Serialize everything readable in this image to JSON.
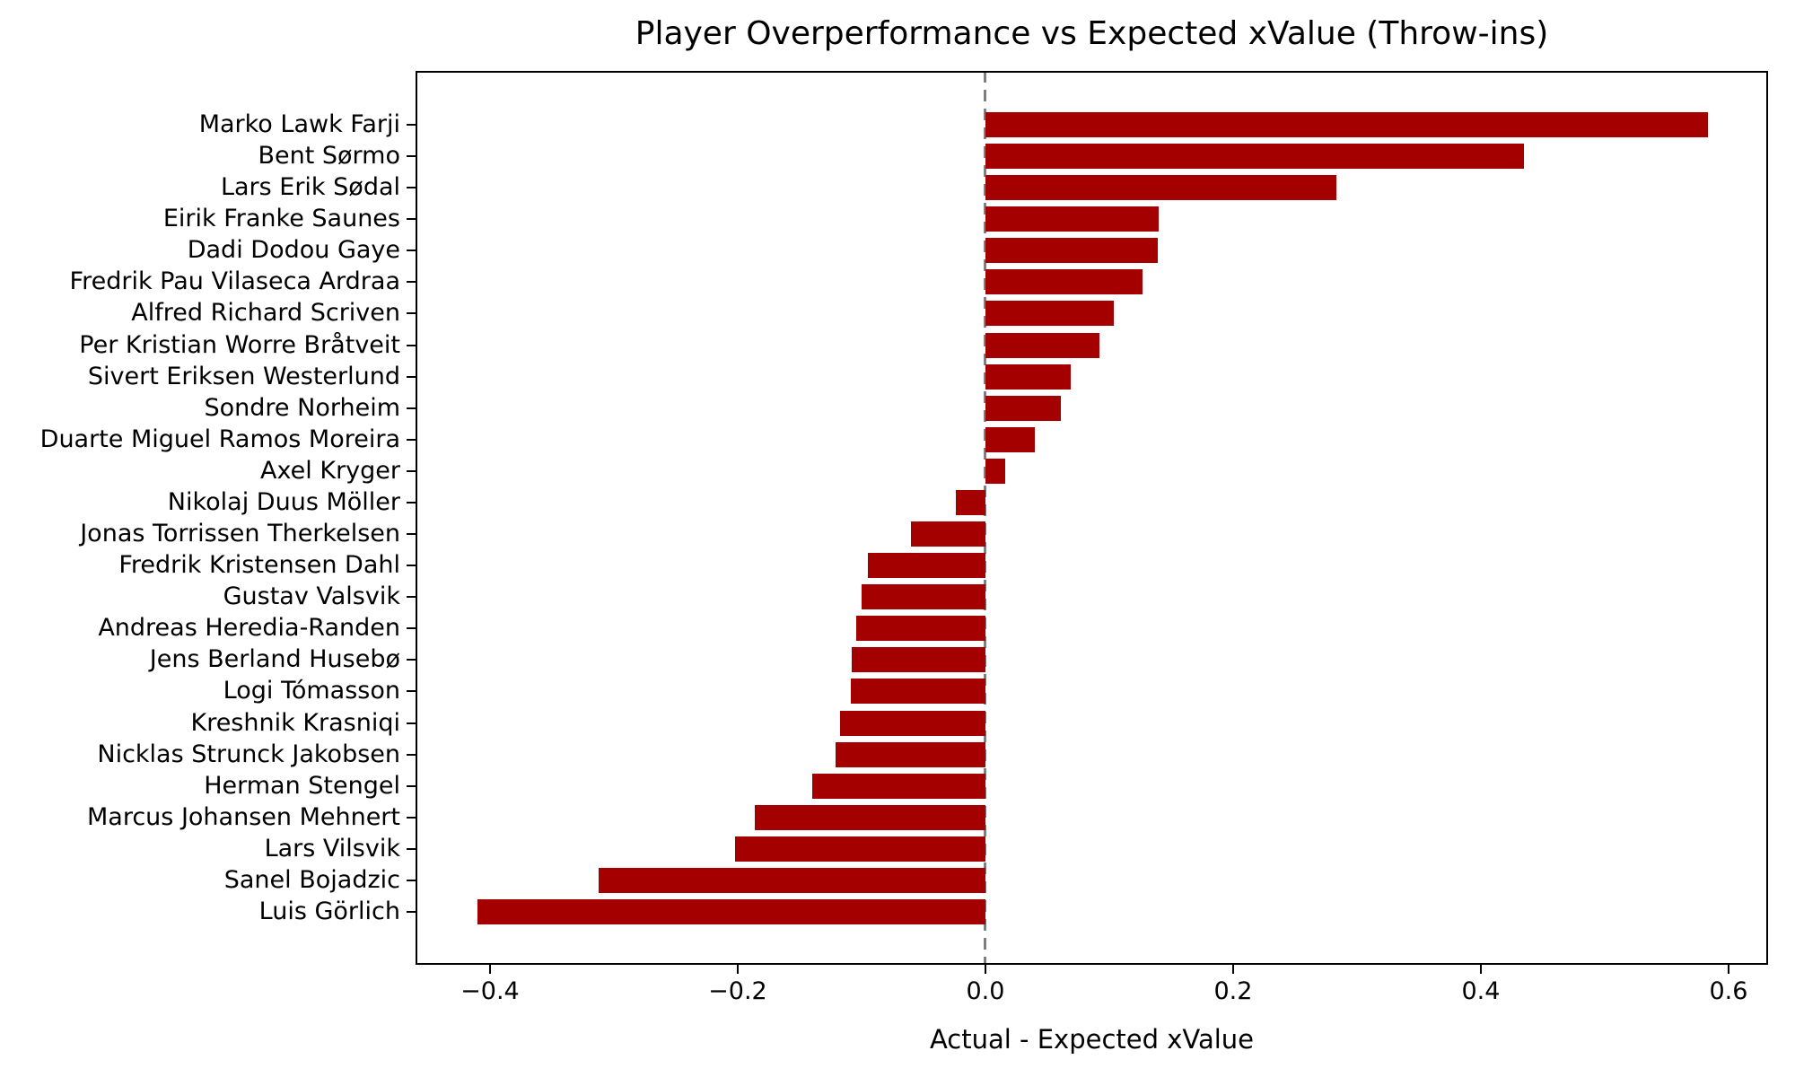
{
  "chart_data": {
    "type": "bar",
    "orientation": "horizontal",
    "title": "Player Overperformance vs Expected xValue (Throw-ins)",
    "xlabel": "Actual - Expected xValue",
    "ylabel": "",
    "categories": [
      "Marko Lawk Farji",
      "Bent Sørmo",
      "Lars Erik Sødal",
      "Eirik Franke Saunes",
      "Dadi Dodou Gaye",
      "Fredrik Pau Vilaseca Ardraa",
      "Alfred Richard Scriven",
      "Per Kristian Worre Bråtveit",
      "Sivert Eriksen Westerlund",
      "Sondre Norheim",
      "Duarte Miguel Ramos Moreira",
      "Axel Kryger",
      "Nikolaj Duus Möller",
      "Jonas Torrissen Therkelsen",
      "Fredrik Kristensen Dahl",
      "Gustav Valsvik",
      "Andreas Heredia-Randen",
      "Jens Berland Husebø",
      "Logi Tómasson",
      "Kreshnik Krasniqi",
      "Nicklas Strunck Jakobsen",
      "Herman Stengel",
      "Marcus Johansen Mehnert",
      "Lars Vilsvik",
      "Sanel Bojadzic",
      "Luis Görlich"
    ],
    "values": [
      0.583,
      0.435,
      0.283,
      0.14,
      0.139,
      0.127,
      0.104,
      0.092,
      0.069,
      0.061,
      0.04,
      0.016,
      -0.024,
      -0.06,
      -0.095,
      -0.1,
      -0.104,
      -0.108,
      -0.109,
      -0.117,
      -0.121,
      -0.14,
      -0.186,
      -0.202,
      -0.312,
      -0.41
    ],
    "xlim": [
      -0.4601,
      0.6319
    ],
    "x_ticks": [
      -0.4,
      -0.2,
      0.0,
      0.2,
      0.4,
      0.6
    ],
    "x_tick_labels": [
      "−0.4",
      "−0.2",
      "0.0",
      "0.2",
      "0.4",
      "0.6"
    ],
    "bar_color": "#a40000",
    "zero_line": {
      "x": 0.0,
      "style": "dashed",
      "color": "#7f7f7f"
    },
    "spine_color": "#000000",
    "background": "#ffffff",
    "text_color": "#000000",
    "grid": false,
    "legend": null
  }
}
